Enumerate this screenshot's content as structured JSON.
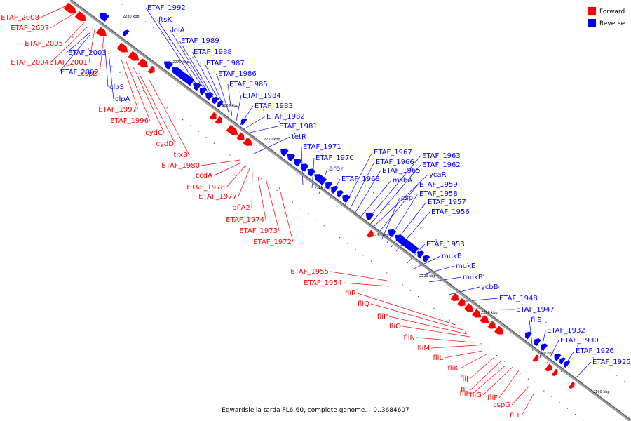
{
  "colors": {
    "forward": "#ff0000",
    "reverse": "#0000ff",
    "backbone": "#8c8c8c",
    "text": "#000000"
  },
  "legend": [
    {
      "label": "Forward",
      "color": "#ff0000"
    },
    {
      "label": "Reverse",
      "color": "#0000ff"
    }
  ],
  "caption": "Edwardsiella tarda FL6-60, complete genome. - 0..3684607",
  "ticks": [
    "2280 kbp",
    "2270 kbp",
    "2260 kbp",
    "2250 kbp",
    "2240 kbp",
    "2230 kbp",
    "2220 kbp",
    "2210 kbp",
    "2200 kbp",
    "2190 kbp"
  ],
  "forward_labels": [
    "ETAF_2008",
    "ETAF_2007",
    "ETAF_2005",
    "ETAF_2004",
    "ETAF_2001",
    "cspD",
    "ETAF_1997",
    "ETAF_1996",
    "cydC",
    "cydD",
    "trxB",
    "ETAF_1980",
    "ccdA",
    "ETAF_1978",
    "ETAF_1977",
    "pflA2",
    "ETAF_1974",
    "ETAF_1973",
    "ETAF_1972",
    "ETAF_1955",
    "ETAF_1954",
    "fliR",
    "fliQ",
    "fliP",
    "fliO",
    "fliN",
    "fliM",
    "fliL",
    "fliK",
    "fliJ",
    "fliI",
    "fliH",
    "fliG",
    "fliF",
    "cspG",
    "fliT"
  ],
  "reverse_labels": [
    "ETAF_2003",
    "ETAF_2002",
    "clpS",
    "clpA",
    "ETAF_1992",
    "ftsK",
    "lolA",
    "ETAF_1989",
    "ETAF_1988",
    "ETAF_1987",
    "ETAF_1986",
    "ETAF_1985",
    "ETAF_1984",
    "ETAF_1983",
    "ETAF_1982",
    "ETAF_1981",
    "tetR",
    "ETAF_1971",
    "ETAF_1970",
    "aroF",
    "ETAF_1968",
    "ETAF_1967",
    "ETAF_1966",
    "ETAF_1965",
    "msbA",
    "ETAF_1963",
    "ETAF_1962",
    "ycaR",
    "ETAF_1959",
    "cspI",
    "ETAF_1958",
    "ETAF_1957",
    "ETAF_1956",
    "ETAF_1953",
    "mukF",
    "mukE",
    "mukB",
    "ycbB",
    "ETAF_1948",
    "ETAF_1947",
    "fliE",
    "ETAF_1932",
    "ETAF_1930",
    "ETAF_1926",
    "ETAF_1925"
  ]
}
